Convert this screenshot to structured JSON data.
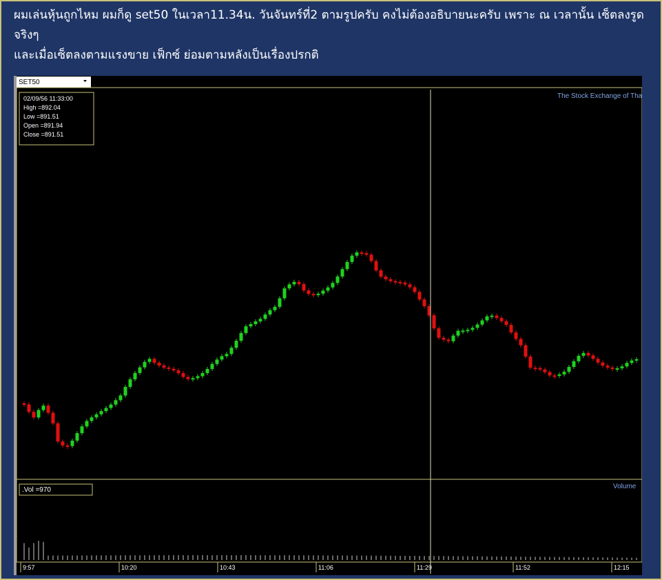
{
  "post": {
    "lines": [
      "ผมเล่นหุ้นถูกไหม ผมก็ดู set50 ในเวลา11.34น. วันจันทร์ที่2 ตามรูปครับ คงไม่ต้องอธิบายนะครับ เพราะ ณ เวลานั้น เซ็ตลงรูดจริงๆ",
      "และเมื่อเซ็ตลงตามแรงขาย  เฟ็กซ์ ย่อมตามหลังเป็นเรื่องปรกติ"
    ]
  },
  "screenshot": {
    "symbol": "SET50",
    "watermark": "The Stock Exchange of Tha",
    "info": [
      "02/09/56 11:33:00",
      "High =892.04",
      "Low =891.51",
      "Open =891.94",
      "Close =891.51"
    ],
    "volume_info": ".Vol =970",
    "volume_title": "Volume",
    "times": [
      "9:57",
      "10:20",
      "10:43",
      "11:06",
      "11:29",
      "11:52",
      "12:15"
    ]
  }
}
